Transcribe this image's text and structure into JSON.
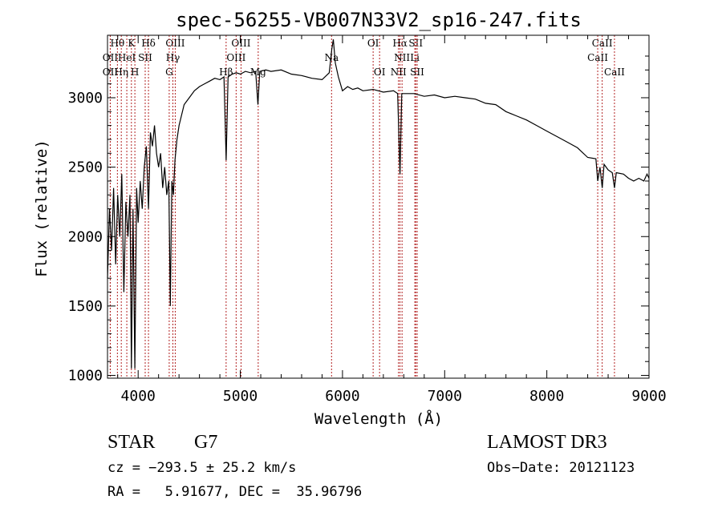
{
  "chart_data": {
    "type": "line",
    "title": "spec-56255-VB007N33V2_sp16-247.fits",
    "xlabel": "Wavelength (Å)",
    "ylabel": "Flux (relative)",
    "xlim": [
      3700,
      9000
    ],
    "ylim": [
      980,
      3450
    ],
    "xticks": [
      4000,
      5000,
      6000,
      7000,
      8000,
      9000
    ],
    "yticks": [
      1000,
      1500,
      2000,
      2500,
      3000
    ],
    "series": [
      {
        "name": "spectrum",
        "points": [
          [
            3700,
            1700
          ],
          [
            3720,
            2200
          ],
          [
            3740,
            1900
          ],
          [
            3760,
            2350
          ],
          [
            3780,
            1800
          ],
          [
            3800,
            2300
          ],
          [
            3820,
            2000
          ],
          [
            3840,
            2450
          ],
          [
            3860,
            1600
          ],
          [
            3880,
            2250
          ],
          [
            3900,
            2000
          ],
          [
            3920,
            2300
          ],
          [
            3934,
            1050
          ],
          [
            3950,
            2200
          ],
          [
            3968,
            1050
          ],
          [
            3985,
            2350
          ],
          [
            4000,
            2100
          ],
          [
            4020,
            2400
          ],
          [
            4040,
            2200
          ],
          [
            4060,
            2500
          ],
          [
            4080,
            2650
          ],
          [
            4101,
            2200
          ],
          [
            4120,
            2750
          ],
          [
            4140,
            2650
          ],
          [
            4160,
            2800
          ],
          [
            4180,
            2600
          ],
          [
            4200,
            2500
          ],
          [
            4220,
            2600
          ],
          [
            4240,
            2350
          ],
          [
            4260,
            2500
          ],
          [
            4280,
            2300
          ],
          [
            4300,
            2400
          ],
          [
            4315,
            1500
          ],
          [
            4330,
            2400
          ],
          [
            4345,
            2300
          ],
          [
            4360,
            2550
          ],
          [
            4380,
            2700
          ],
          [
            4400,
            2800
          ],
          [
            4450,
            2950
          ],
          [
            4500,
            3000
          ],
          [
            4550,
            3050
          ],
          [
            4600,
            3080
          ],
          [
            4650,
            3100
          ],
          [
            4700,
            3120
          ],
          [
            4750,
            3140
          ],
          [
            4800,
            3130
          ],
          [
            4840,
            3150
          ],
          [
            4861,
            2550
          ],
          [
            4880,
            3150
          ],
          [
            4920,
            3170
          ],
          [
            4960,
            3180
          ],
          [
            5000,
            3170
          ],
          [
            5050,
            3190
          ],
          [
            5100,
            3180
          ],
          [
            5150,
            3190
          ],
          [
            5172,
            2950
          ],
          [
            5190,
            3190
          ],
          [
            5250,
            3200
          ],
          [
            5300,
            3190
          ],
          [
            5400,
            3200
          ],
          [
            5500,
            3170
          ],
          [
            5600,
            3160
          ],
          [
            5700,
            3140
          ],
          [
            5800,
            3130
          ],
          [
            5870,
            3180
          ],
          [
            5895,
            3350
          ],
          [
            5910,
            3420
          ],
          [
            5930,
            3250
          ],
          [
            5960,
            3150
          ],
          [
            6000,
            3050
          ],
          [
            6050,
            3080
          ],
          [
            6100,
            3060
          ],
          [
            6150,
            3070
          ],
          [
            6200,
            3050
          ],
          [
            6300,
            3060
          ],
          [
            6400,
            3040
          ],
          [
            6500,
            3050
          ],
          [
            6540,
            3030
          ],
          [
            6563,
            2450
          ],
          [
            6580,
            3030
          ],
          [
            6650,
            3030
          ],
          [
            6700,
            3030
          ],
          [
            6800,
            3010
          ],
          [
            6900,
            3020
          ],
          [
            7000,
            3000
          ],
          [
            7100,
            3010
          ],
          [
            7200,
            3000
          ],
          [
            7300,
            2990
          ],
          [
            7400,
            2960
          ],
          [
            7500,
            2950
          ],
          [
            7600,
            2900
          ],
          [
            7700,
            2870
          ],
          [
            7800,
            2840
          ],
          [
            7900,
            2800
          ],
          [
            8000,
            2760
          ],
          [
            8100,
            2720
          ],
          [
            8200,
            2680
          ],
          [
            8300,
            2640
          ],
          [
            8400,
            2570
          ],
          [
            8480,
            2560
          ],
          [
            8498,
            2400
          ],
          [
            8520,
            2500
          ],
          [
            8542,
            2350
          ],
          [
            8560,
            2520
          ],
          [
            8600,
            2480
          ],
          [
            8640,
            2460
          ],
          [
            8662,
            2350
          ],
          [
            8680,
            2460
          ],
          [
            8750,
            2450
          ],
          [
            8800,
            2420
          ],
          [
            8850,
            2400
          ],
          [
            8900,
            2420
          ],
          [
            8950,
            2400
          ],
          [
            8980,
            2450
          ],
          [
            9000,
            2420
          ]
        ]
      }
    ],
    "lines": [
      {
        "row": 1,
        "label": "Hθ",
        "x": 3797
      },
      {
        "row": 2,
        "label": "OII",
        "x": 3727
      },
      {
        "row": 3,
        "label": "OII",
        "x": 3727
      },
      {
        "row": 2,
        "label": "HeI",
        "x": 3889
      },
      {
        "row": 1,
        "label": "K",
        "x": 3934
      },
      {
        "row": 3,
        "label": "Hη",
        "x": 3835
      },
      {
        "row": 2,
        "label": "SII",
        "x": 4069
      },
      {
        "row": 3,
        "label": "H",
        "x": 3968
      },
      {
        "row": 1,
        "label": "Hδ",
        "x": 4101
      },
      {
        "row": 1,
        "label": "OIII",
        "x": 4363
      },
      {
        "row": 2,
        "label": "Hγ",
        "x": 4340
      },
      {
        "row": 3,
        "label": "G",
        "x": 4304
      },
      {
        "row": 1,
        "label": "OIII",
        "x": 5007
      },
      {
        "row": 2,
        "label": "OIII",
        "x": 4959
      },
      {
        "row": 3,
        "label": "Hβ",
        "x": 4861
      },
      {
        "row": 3,
        "label": "Mg",
        "x": 5175
      },
      {
        "row": 2,
        "label": "Na",
        "x": 5893
      },
      {
        "row": 1,
        "label": "OI",
        "x": 6300
      },
      {
        "row": 3,
        "label": "OI",
        "x": 6363
      },
      {
        "row": 1,
        "label": "Hα",
        "x": 6563
      },
      {
        "row": 1,
        "label": "SII",
        "x": 6717
      },
      {
        "row": 2,
        "label": "NII",
        "x": 6583
      },
      {
        "row": 2,
        "label": "Li",
        "x": 6708
      },
      {
        "row": 3,
        "label": "NII",
        "x": 6548
      },
      {
        "row": 3,
        "label": "SII",
        "x": 6731
      },
      {
        "row": 1,
        "label": "CaII",
        "x": 8542
      },
      {
        "row": 2,
        "label": "CaII",
        "x": 8498
      },
      {
        "row": 3,
        "label": "CaII",
        "x": 8662
      }
    ]
  },
  "info": {
    "class_label": "STAR",
    "subclass": "G7",
    "survey": "LAMOST DR3",
    "cz": "cz = −293.5 ± 25.2 km/s",
    "obs_date": "Obs−Date: 20121123",
    "coords": "RA =   5.91677, DEC =  35.96796"
  }
}
